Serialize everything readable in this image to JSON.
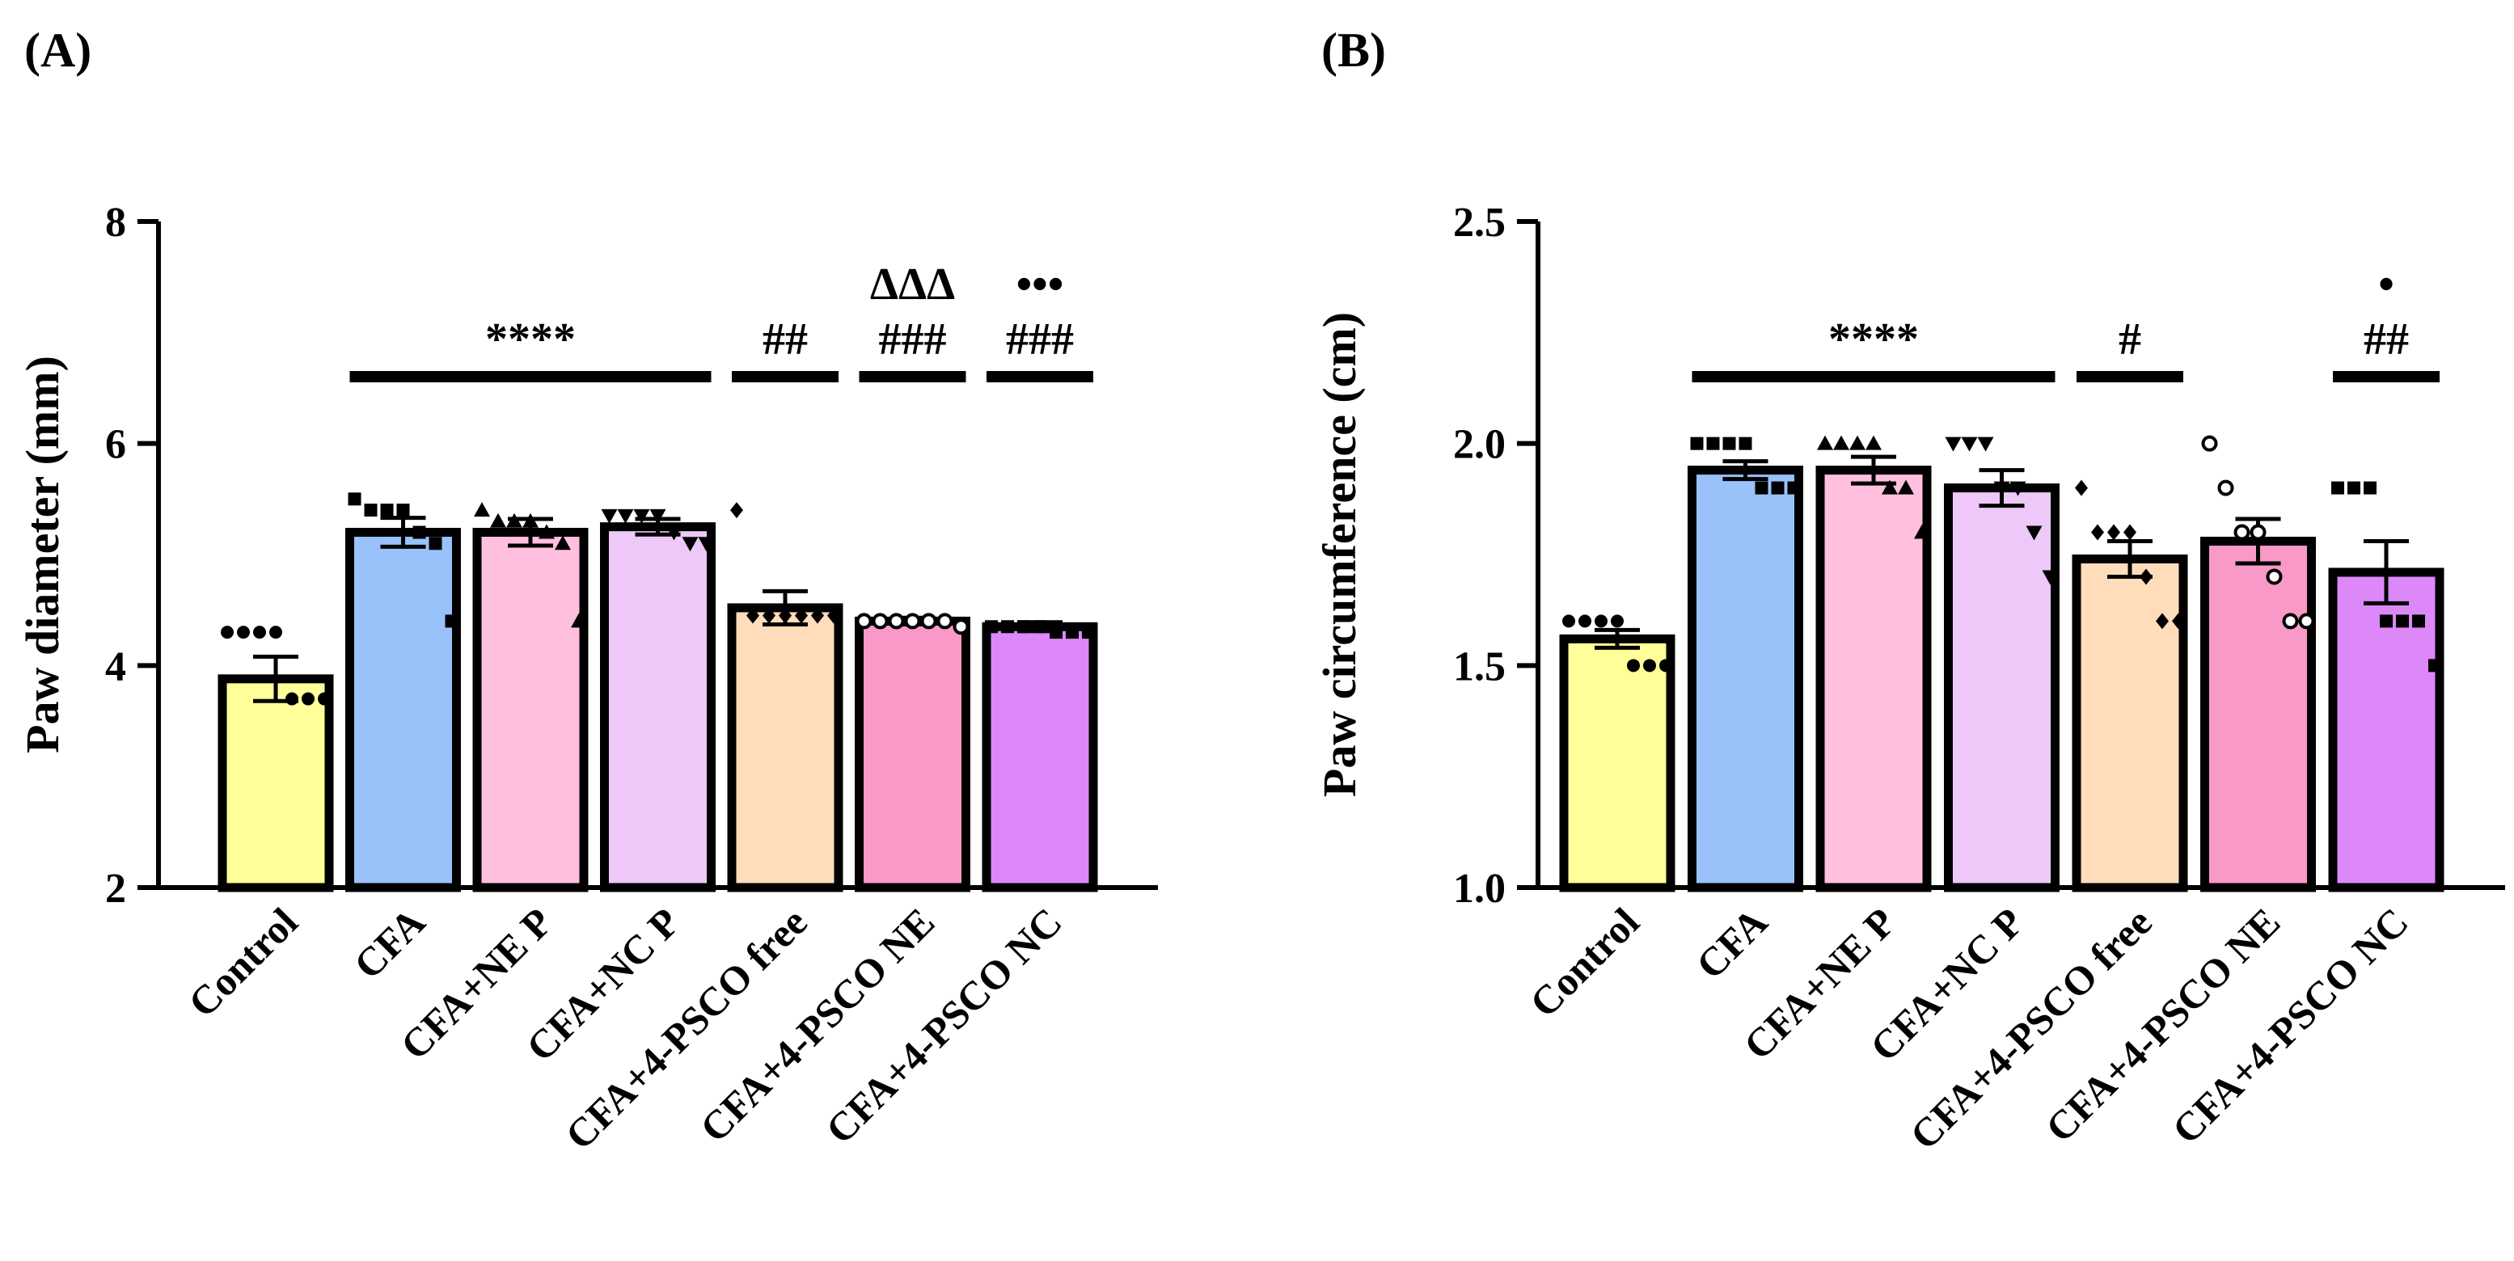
{
  "figure": {
    "panel_a_label": "(A)",
    "panel_b_label": "(B)"
  },
  "chart_data": [
    {
      "type": "bar",
      "panel": "A",
      "title": "",
      "xlabel": "",
      "ylabel": "Paw diameter (mm)",
      "ylim": [
        2,
        8
      ],
      "yticks": [
        2,
        4,
        6,
        8
      ],
      "ytick_labels": [
        "2",
        "4",
        "6",
        "8"
      ],
      "categories": [
        "Control",
        "CFA",
        "CFA+NE P",
        "CFA+NC P",
        "CFA+4-PSCO free",
        "CFA+4-PSCO NE",
        "CFA+4-PSCO NC"
      ],
      "values": [
        3.88,
        5.2,
        5.2,
        5.25,
        4.52,
        4.4,
        4.35
      ],
      "errors": [
        0.2,
        0.13,
        0.12,
        0.07,
        0.15,
        0.03,
        0.04
      ],
      "colors": [
        "#FFFF99",
        "#99C2FA",
        "#FFC0E0",
        "#EDC8F8",
        "#FFDDBB",
        "#F899C8",
        "#DD88F8"
      ],
      "point_markers": [
        "circle",
        "square",
        "triangle",
        "triangle-down",
        "diamond",
        "circle-open",
        "square"
      ],
      "points": [
        [
          4.3,
          4.3,
          4.3,
          4.3,
          3.7,
          3.7,
          3.7
        ],
        [
          5.5,
          5.4,
          5.4,
          5.4,
          5.2,
          5.1,
          4.4
        ],
        [
          5.4,
          5.3,
          5.3,
          5.3,
          5.2,
          5.1,
          4.4
        ],
        [
          5.35,
          5.35,
          5.35,
          5.35,
          5.2,
          5.1,
          5.1
        ],
        [
          5.4,
          4.45,
          4.45,
          4.45,
          4.45,
          4.45,
          4.45
        ],
        [
          4.4,
          4.4,
          4.4,
          4.4,
          4.4,
          4.4,
          4.35
        ],
        [
          4.35,
          4.35,
          4.35,
          4.35,
          4.3,
          4.3,
          4.3
        ]
      ],
      "significance": [
        {
          "from": 1,
          "to": 3,
          "label": "****"
        },
        {
          "from": 4,
          "to": 4,
          "label": "##"
        },
        {
          "from": 5,
          "to": 5,
          "label": "###",
          "label2": "ΔΔΔ"
        },
        {
          "from": 6,
          "to": 6,
          "label": "###",
          "label2": "•••"
        }
      ]
    },
    {
      "type": "bar",
      "panel": "B",
      "title": "",
      "xlabel": "",
      "ylabel": "Paw circumference (cm)",
      "ylim": [
        1.0,
        2.5
      ],
      "yticks": [
        1.0,
        1.5,
        2.0,
        2.5
      ],
      "ytick_labels": [
        "1.0",
        "1.5",
        "2.0",
        "2.5"
      ],
      "categories": [
        "Control",
        "CFA",
        "CFA+NE P",
        "CFA+NC P",
        "CFA+4-PSCO free",
        "CFA+4-PSCO NE",
        "CFA+4-PSCO NC"
      ],
      "values": [
        1.56,
        1.94,
        1.94,
        1.9,
        1.74,
        1.78,
        1.71
      ],
      "errors": [
        0.02,
        0.02,
        0.03,
        0.04,
        0.04,
        0.05,
        0.07
      ],
      "colors": [
        "#FFFF99",
        "#99C2FA",
        "#FFC0E0",
        "#EDC8F8",
        "#FFDDBB",
        "#F899C8",
        "#DD88F8"
      ],
      "point_markers": [
        "circle",
        "square",
        "triangle",
        "triangle-down",
        "diamond",
        "circle-open",
        "square"
      ],
      "points": [
        [
          1.6,
          1.6,
          1.6,
          1.6,
          1.5,
          1.5,
          1.5
        ],
        [
          2.0,
          2.0,
          2.0,
          2.0,
          1.9,
          1.9,
          1.9
        ],
        [
          2.0,
          2.0,
          2.0,
          2.0,
          1.9,
          1.9,
          1.8
        ],
        [
          2.0,
          2.0,
          2.0,
          1.9,
          1.9,
          1.8,
          1.7
        ],
        [
          1.9,
          1.8,
          1.8,
          1.8,
          1.7,
          1.6,
          1.6
        ],
        [
          2.0,
          1.9,
          1.8,
          1.8,
          1.7,
          1.6,
          1.6
        ],
        [
          1.9,
          1.9,
          1.9,
          1.6,
          1.6,
          1.6,
          1.5
        ]
      ],
      "significance": [
        {
          "from": 1,
          "to": 3,
          "label": "****"
        },
        {
          "from": 4,
          "to": 4,
          "label": "#"
        },
        {
          "from": 6,
          "to": 6,
          "label": "##",
          "label2": "•"
        }
      ]
    }
  ]
}
